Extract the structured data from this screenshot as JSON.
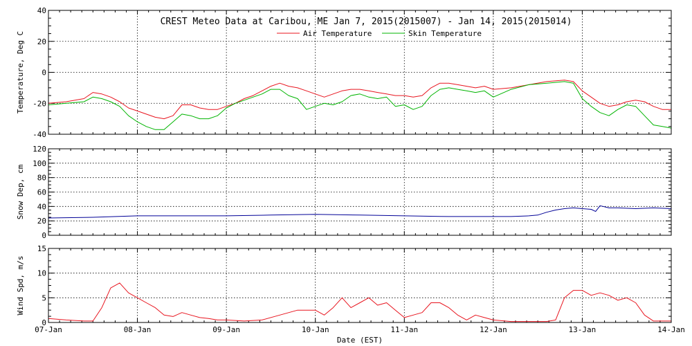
{
  "chart_data": {
    "type": "line",
    "title": "CREST Meteo Data at Caribou, ME   Jan  7, 2015(2015007) - Jan 14, 2015(2015014)",
    "xlabel": "Date (EST)",
    "xlim": [
      0,
      7
    ],
    "x_tick_labels": [
      "07-Jan",
      "08-Jan",
      "09-Jan",
      "10-Jan",
      "11-Jan",
      "12-Jan",
      "13-Jan",
      "14-Jan"
    ],
    "grid": true,
    "legend_position": "top-center",
    "panels": [
      {
        "ylabel": "Temperature, Deg C",
        "ylim": [
          -40,
          40
        ],
        "y_ticks": [
          -40,
          -20,
          0,
          20,
          40
        ],
        "y_tick_labels": [
          "-40",
          "-20",
          "0",
          "20",
          "40"
        ],
        "series": [
          {
            "name": "Air Temperature",
            "color": "#e8141e",
            "x": [
              0,
              0.2,
              0.4,
              0.5,
              0.6,
              0.7,
              0.8,
              0.9,
              1.0,
              1.1,
              1.2,
              1.3,
              1.4,
              1.5,
              1.6,
              1.7,
              1.8,
              1.9,
              2.0,
              2.1,
              2.2,
              2.3,
              2.4,
              2.5,
              2.6,
              2.7,
              2.8,
              2.9,
              3.0,
              3.1,
              3.2,
              3.3,
              3.4,
              3.5,
              3.6,
              3.7,
              3.8,
              3.9,
              4.0,
              4.1,
              4.2,
              4.3,
              4.4,
              4.5,
              4.6,
              4.7,
              4.8,
              4.9,
              5.0,
              5.2,
              5.4,
              5.6,
              5.8,
              5.9,
              6.0,
              6.1,
              6.2,
              6.3,
              6.4,
              6.5,
              6.6,
              6.7,
              6.8,
              6.9,
              7.0
            ],
            "y": [
              -20,
              -19,
              -17,
              -13,
              -14,
              -16,
              -19,
              -23,
              -25,
              -27,
              -29,
              -30,
              -28,
              -21,
              -21,
              -23,
              -24,
              -24,
              -22,
              -20,
              -17,
              -15,
              -12,
              -9,
              -7,
              -9,
              -10,
              -12,
              -14,
              -16,
              -14,
              -12,
              -11,
              -11,
              -12,
              -13,
              -14,
              -15,
              -15,
              -16,
              -15,
              -10,
              -7,
              -7,
              -8,
              -9,
              -10,
              -9,
              -11,
              -10,
              -8,
              -6,
              -5,
              -6,
              -12,
              -16,
              -20,
              -22,
              -21,
              -19,
              -18,
              -19,
              -22,
              -24,
              -24
            ]
          },
          {
            "name": "Skin Temperature",
            "color": "#00b400",
            "x": [
              0,
              0.2,
              0.4,
              0.5,
              0.6,
              0.7,
              0.8,
              0.9,
              1.0,
              1.1,
              1.2,
              1.3,
              1.4,
              1.5,
              1.6,
              1.7,
              1.8,
              1.9,
              2.0,
              2.1,
              2.2,
              2.3,
              2.4,
              2.5,
              2.6,
              2.7,
              2.8,
              2.9,
              3.0,
              3.1,
              3.2,
              3.3,
              3.4,
              3.5,
              3.6,
              3.7,
              3.8,
              3.9,
              4.0,
              4.1,
              4.2,
              4.3,
              4.4,
              4.5,
              4.6,
              4.7,
              4.8,
              4.9,
              5.0,
              5.2,
              5.4,
              5.6,
              5.8,
              5.9,
              6.0,
              6.1,
              6.2,
              6.3,
              6.4,
              6.5,
              6.6,
              6.7,
              6.8,
              6.9,
              7.0
            ],
            "y": [
              -21,
              -20,
              -19,
              -16,
              -17,
              -19,
              -22,
              -28,
              -32,
              -35,
              -37,
              -37,
              -32,
              -27,
              -28,
              -30,
              -30,
              -28,
              -23,
              -20,
              -18,
              -16,
              -14,
              -11,
              -11,
              -15,
              -17,
              -24,
              -22,
              -20,
              -21,
              -19,
              -15,
              -14,
              -16,
              -17,
              -16,
              -22,
              -21,
              -24,
              -22,
              -15,
              -11,
              -10,
              -11,
              -12,
              -13,
              -12,
              -16,
              -11,
              -8,
              -7,
              -6,
              -7,
              -17,
              -22,
              -26,
              -28,
              -24,
              -21,
              -22,
              -28,
              -34,
              -35,
              -36
            ]
          }
        ]
      },
      {
        "ylabel": "Snow Dep, cm",
        "ylim": [
          0,
          120
        ],
        "y_ticks": [
          0,
          20,
          40,
          60,
          80,
          100,
          120
        ],
        "y_tick_labels": [
          "0",
          "20",
          "40",
          "60",
          "80",
          "100",
          "120"
        ],
        "series": [
          {
            "name": "",
            "color": "#000096",
            "x": [
              0,
              0.5,
              1.0,
              1.5,
              2.0,
              2.5,
              3.0,
              3.5,
              4.0,
              4.5,
              5.0,
              5.2,
              5.4,
              5.5,
              5.6,
              5.7,
              5.8,
              5.9,
              6.0,
              6.1,
              6.15,
              6.2,
              6.3,
              6.4,
              6.6,
              6.8,
              7.0
            ],
            "y": [
              24,
              25,
              27,
              27,
              27,
              28,
              29,
              28,
              27,
              26,
              26,
              26,
              27,
              28,
              32,
              35,
              37,
              38,
              37,
              36,
              33,
              41,
              38,
              38,
              37,
              38,
              37
            ]
          }
        ]
      },
      {
        "ylabel": "Wind Spd, m/s",
        "ylim": [
          0,
          15
        ],
        "y_ticks": [
          0,
          5,
          10,
          15
        ],
        "y_tick_labels": [
          "0",
          "5",
          "10",
          "15"
        ],
        "series": [
          {
            "name": "",
            "color": "#e8141e",
            "x": [
              0,
              0.2,
              0.4,
              0.5,
              0.6,
              0.7,
              0.8,
              0.9,
              1.0,
              1.1,
              1.2,
              1.3,
              1.4,
              1.5,
              1.6,
              1.7,
              1.8,
              1.9,
              2.0,
              2.2,
              2.4,
              2.6,
              2.8,
              3.0,
              3.1,
              3.2,
              3.3,
              3.4,
              3.5,
              3.6,
              3.7,
              3.8,
              3.9,
              4.0,
              4.1,
              4.2,
              4.3,
              4.4,
              4.5,
              4.6,
              4.7,
              4.8,
              4.9,
              5.0,
              5.2,
              5.4,
              5.6,
              5.7,
              5.8,
              5.9,
              6.0,
              6.1,
              6.2,
              6.3,
              6.4,
              6.5,
              6.6,
              6.7,
              6.8,
              6.9,
              7.0
            ],
            "y": [
              0.8,
              0.5,
              0.3,
              0.3,
              3,
              7,
              8,
              6,
              5,
              4,
              3,
              1.5,
              1.2,
              2,
              1.5,
              1,
              0.8,
              0.5,
              0.5,
              0.3,
              0.5,
              1.5,
              2.5,
              2.5,
              1.5,
              3,
              5,
              3,
              4,
              5,
              3.5,
              4,
              2.5,
              1,
              1.5,
              2,
              4,
              4,
              3,
              1.5,
              0.5,
              1.5,
              1,
              0.5,
              0.2,
              0.2,
              0.2,
              0.5,
              5,
              6.5,
              6.5,
              5.5,
              6,
              5.5,
              4.5,
              5,
              4,
              1.5,
              0.3,
              0.3,
              0.3
            ]
          }
        ]
      }
    ]
  }
}
